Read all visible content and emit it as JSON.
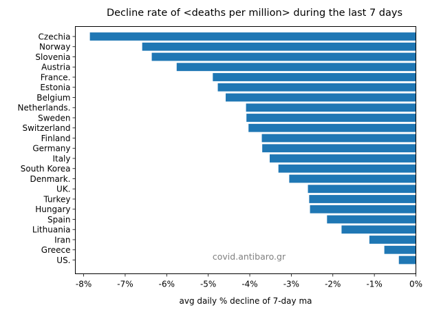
{
  "chart_data": {
    "type": "bar",
    "orientation": "horizontal",
    "title": "Decline rate of <deaths per million> during the last 7 days",
    "xlabel": "avg daily % decline of 7-day ma",
    "ylabel": "",
    "xlim": [
      -8.2,
      0
    ],
    "x_ticks": [
      {
        "value": -8,
        "label": "-8%"
      },
      {
        "value": -7,
        "label": "-7%"
      },
      {
        "value": -6,
        "label": "-6%"
      },
      {
        "value": -5,
        "label": "-5%"
      },
      {
        "value": -4,
        "label": "-4%"
      },
      {
        "value": -3,
        "label": "-3%"
      },
      {
        "value": -2,
        "label": "-2%"
      },
      {
        "value": -1,
        "label": "-1%"
      },
      {
        "value": 0,
        "label": "0%"
      }
    ],
    "categories": [
      "Czechia",
      "Norway",
      "Slovenia",
      "Austria",
      "France.",
      "Estonia",
      "Belgium",
      "Netherlands.",
      "Sweden",
      "Switzerland",
      "Finland",
      "Germany",
      "Italy",
      "South Korea",
      "Denmark.",
      "UK.",
      "Turkey",
      "Hungary",
      "Spain",
      "Lithuania",
      "Iran",
      "Greece",
      "US."
    ],
    "values": [
      -7.85,
      -6.59,
      -6.36,
      -5.76,
      -4.89,
      -4.77,
      -4.58,
      -4.09,
      -4.08,
      -4.03,
      -3.71,
      -3.7,
      -3.52,
      -3.31,
      -3.05,
      -2.6,
      -2.57,
      -2.55,
      -2.14,
      -1.79,
      -1.12,
      -0.76,
      -0.41
    ],
    "bar_color": "#1f77b4",
    "grid": false,
    "legend": "none",
    "annotation": "covid.antibaro.gr"
  }
}
